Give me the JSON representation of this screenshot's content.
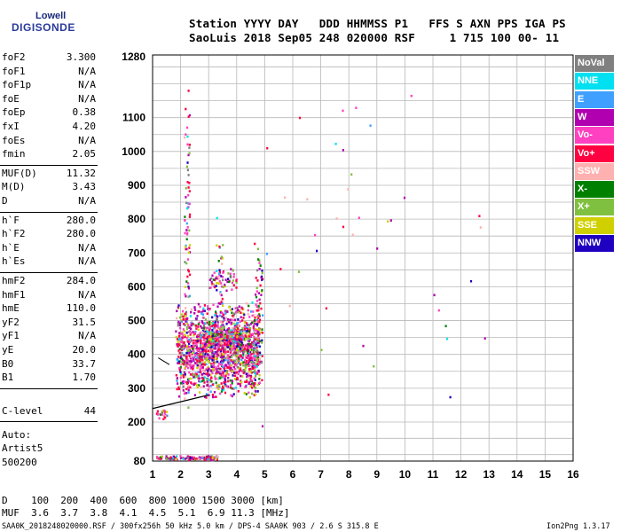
{
  "logo": {
    "line1": "Lowell",
    "line2": "DIGISONDE"
  },
  "header": {
    "line1": "Station YYYY DAY   DDD HHMMSS P1   FFS S AXN PPS IGA PS",
    "line2": "SaoLuis 2018 Sep05 248 020000 RSF     1 715 100 00- 11"
  },
  "params_1": [
    {
      "k": "foF2",
      "v": "3.300"
    },
    {
      "k": "foF1",
      "v": "N/A"
    },
    {
      "k": "foF1p",
      "v": "N/A"
    },
    {
      "k": "foE",
      "v": "N/A"
    },
    {
      "k": "foEp",
      "v": "0.38"
    },
    {
      "k": "fxI",
      "v": "4.20"
    },
    {
      "k": "foEs",
      "v": "N/A"
    },
    {
      "k": "fmin",
      "v": "2.05"
    }
  ],
  "params_2": [
    {
      "k": "MUF(D)",
      "v": "11.32"
    },
    {
      "k": "M(D)",
      "v": "3.43"
    },
    {
      "k": "D",
      "v": "N/A"
    }
  ],
  "params_3": [
    {
      "k": "h`F",
      "v": "280.0"
    },
    {
      "k": "h`F2",
      "v": "280.0"
    },
    {
      "k": "h`E",
      "v": "N/A"
    },
    {
      "k": "h`Es",
      "v": "N/A"
    }
  ],
  "params_4": [
    {
      "k": "hmF2",
      "v": "284.0"
    },
    {
      "k": "hmF1",
      "v": "N/A"
    },
    {
      "k": "hmE",
      "v": "110.0"
    },
    {
      "k": "yF2",
      "v": "31.5"
    },
    {
      "k": "yF1",
      "v": "N/A"
    },
    {
      "k": "yE",
      "v": "20.0"
    },
    {
      "k": "B0",
      "v": "33.7"
    },
    {
      "k": "B1",
      "v": "1.70"
    }
  ],
  "clevel": {
    "k": "C-level",
    "v": "44"
  },
  "auto": {
    "line1": "Auto:",
    "line2": "Artist5",
    "line3": "500200"
  },
  "legend": [
    {
      "label": "NoVal",
      "color": "#808080"
    },
    {
      "label": "NNE",
      "color": "#00e0f0"
    },
    {
      "label": "E",
      "color": "#40a0ff"
    },
    {
      "label": "W",
      "color": "#b000b0"
    },
    {
      "label": "Vo-",
      "color": "#ff40c0"
    },
    {
      "label": "Vo+",
      "color": "#ff0040"
    },
    {
      "label": "SSW",
      "color": "#ffb0b0"
    },
    {
      "label": "X-",
      "color": "#008000"
    },
    {
      "label": "X+",
      "color": "#80c040"
    },
    {
      "label": "SSE",
      "color": "#d0d000"
    },
    {
      "label": "NNW",
      "color": "#2000c0"
    }
  ],
  "footer": {
    "d_row": "D    100  200  400  600  800 1000 1500 3000 [km]",
    "muf_row": "MUF  3.6  3.7  3.8  4.1  4.5  5.1  6.9 11.3 [MHz]",
    "file": "SAA0K_2018248020000.RSF / 300fx256h 50 kHz 5.0 km / DPS-4 SAA0K 903 / 2.6 S 315.8 E",
    "version": "Ion2Png 1.3.17"
  },
  "chart_data": {
    "type": "scatter",
    "x_ticks": [
      "1",
      "2",
      "3",
      "4",
      "5",
      "6",
      "7",
      "8",
      "9",
      "10",
      "11",
      "12",
      "13",
      "14",
      "15",
      "16"
    ],
    "y_ticks": [
      "1280",
      "1100",
      "1000",
      "900",
      "800",
      "700",
      "600",
      "500",
      "400",
      "300",
      "200",
      "80"
    ],
    "xlim": [
      1,
      16
    ],
    "ylim": [
      80,
      1280
    ],
    "grid": true,
    "legend_position": "right",
    "trace_x": [
      1.0,
      3.0
    ],
    "trace_y": [
      240,
      280
    ],
    "clusters": [
      {
        "x": [
          1.8,
          4.8
        ],
        "y": [
          270,
          560
        ],
        "n": 1600
      },
      {
        "x": [
          2.8,
          4.2
        ],
        "y": [
          420,
          480
        ],
        "n": 300
      },
      {
        "x": [
          1.1,
          3.3
        ],
        "y": [
          85,
          100
        ],
        "n": 140
      },
      {
        "x": [
          3.0,
          4.0
        ],
        "y": [
          590,
          660
        ],
        "n": 60
      },
      {
        "x": [
          3.2,
          3.5
        ],
        "y": [
          190,
          820
        ],
        "n": 60
      },
      {
        "x": [
          2.1,
          2.3
        ],
        "y": [
          180,
          1270
        ],
        "n": 90
      },
      {
        "x": [
          4.6,
          4.9
        ],
        "y": [
          180,
          800
        ],
        "n": 70
      },
      {
        "x": [
          1.1,
          1.5
        ],
        "y": [
          210,
          240
        ],
        "n": 20
      },
      {
        "x": [
          5.0,
          13.0
        ],
        "y": [
          150,
          1270
        ],
        "n": 40
      }
    ]
  }
}
